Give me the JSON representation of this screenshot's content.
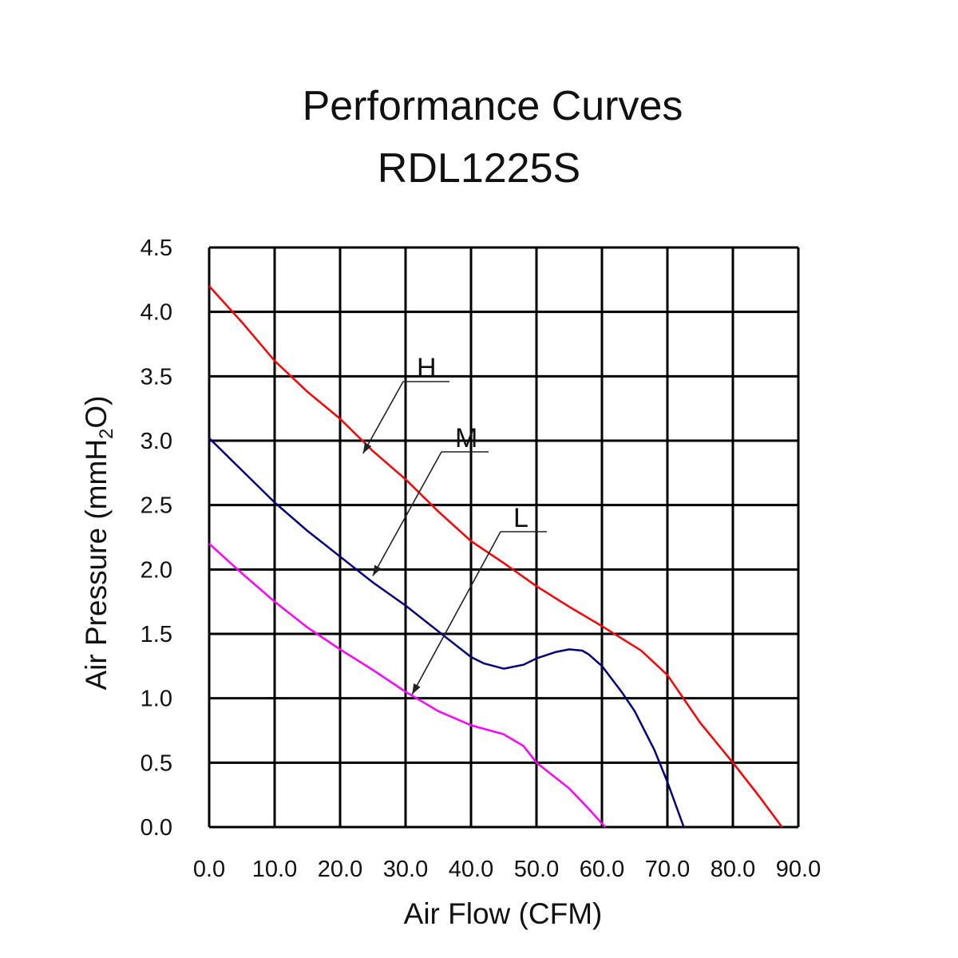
{
  "chart_data": {
    "type": "line",
    "title": [
      "Performance Curves",
      "RDL1225S"
    ],
    "xlabel": "Air Flow (CFM)",
    "ylabel_parts": [
      "Air Pressure (mmH",
      "2",
      "O)"
    ],
    "xlim": [
      0,
      90
    ],
    "ylim": [
      0,
      4.5
    ],
    "grid": true,
    "xticks": [
      "0.0",
      "10.0",
      "20.0",
      "30.0",
      "40.0",
      "50.0",
      "60.0",
      "70.0",
      "80.0",
      "90.0"
    ],
    "yticks": [
      "0.0",
      "0.5",
      "1.0",
      "1.5",
      "2.0",
      "2.5",
      "3.0",
      "3.5",
      "4.0",
      "4.5"
    ],
    "series": [
      {
        "name": "H",
        "color": "#ff0000",
        "x": [
          0,
          5,
          10,
          15,
          20,
          25,
          30,
          35,
          40,
          45,
          50,
          55,
          60,
          66,
          70,
          75,
          80,
          84,
          87.5
        ],
        "y": [
          4.2,
          3.92,
          3.62,
          3.38,
          3.17,
          2.92,
          2.7,
          2.45,
          2.22,
          2.05,
          1.87,
          1.71,
          1.56,
          1.37,
          1.18,
          0.81,
          0.5,
          0.24,
          0
        ]
      },
      {
        "name": "M",
        "color": "#000080",
        "x": [
          0,
          5,
          10,
          15,
          20,
          25,
          30,
          35,
          40,
          42,
          45,
          48,
          50,
          53,
          55,
          57,
          58,
          60,
          63,
          65,
          68,
          70,
          72.5
        ],
        "y": [
          3.02,
          2.77,
          2.52,
          2.3,
          2.1,
          1.9,
          1.72,
          1.52,
          1.32,
          1.27,
          1.23,
          1.26,
          1.31,
          1.36,
          1.38,
          1.37,
          1.34,
          1.25,
          1.05,
          0.9,
          0.6,
          0.35,
          0
        ]
      },
      {
        "name": "L",
        "color": "#ff00ff",
        "x": [
          0,
          5,
          10,
          15,
          20,
          25,
          30,
          35,
          40,
          45,
          48,
          50,
          55,
          58,
          60.5
        ],
        "y": [
          2.2,
          1.97,
          1.75,
          1.55,
          1.38,
          1.22,
          1.05,
          0.9,
          0.79,
          0.72,
          0.63,
          0.5,
          0.3,
          0.14,
          0
        ]
      }
    ]
  }
}
